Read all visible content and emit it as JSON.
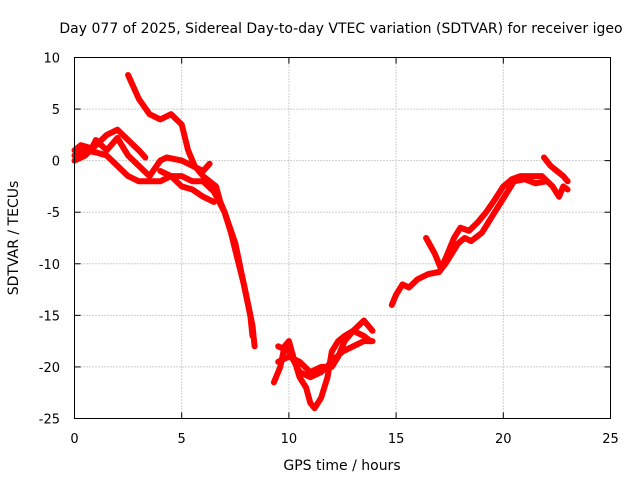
{
  "chart_data": {
    "type": "line",
    "title": "Day 077 of 2025, Sidereal Day-to-day VTEC variation (SDTVAR) for receiver igeo",
    "xlabel": "GPS time / hours",
    "ylabel": "SDTVAR / TECUs",
    "xlim": [
      0,
      25
    ],
    "ylim": [
      -25,
      10
    ],
    "xticks": [
      0,
      5,
      10,
      15,
      20,
      25
    ],
    "yticks": [
      -25,
      -20,
      -15,
      -10,
      -5,
      0,
      5,
      10
    ],
    "grid": true,
    "legend": "none",
    "series_color": "#ff0000",
    "series": [
      {
        "name": "segment-a",
        "points": [
          [
            0,
            1
          ],
          [
            0.3,
            1.5
          ],
          [
            0.8,
            1.2
          ],
          [
            1,
            2
          ],
          [
            1.5,
            1
          ],
          [
            2,
            2.2
          ],
          [
            2.5,
            0.5
          ],
          [
            3,
            -0.5
          ],
          [
            3.5,
            -1.5
          ],
          [
            4,
            0
          ],
          [
            4.3,
            0.3
          ],
          [
            5,
            0
          ],
          [
            5.5,
            -0.5
          ],
          [
            6,
            -1
          ],
          [
            6.3,
            -0.3
          ]
        ]
      },
      {
        "name": "segment-b",
        "points": [
          [
            0,
            0
          ],
          [
            0.5,
            0.5
          ],
          [
            1,
            1.5
          ],
          [
            1.5,
            2.5
          ],
          [
            2,
            3
          ],
          [
            2.5,
            2
          ],
          [
            3,
            1
          ],
          [
            3.3,
            0.3
          ]
        ]
      },
      {
        "name": "segment-c",
        "points": [
          [
            0,
            0.5
          ],
          [
            0.5,
            1
          ],
          [
            1,
            0.8
          ],
          [
            1.5,
            0.5
          ],
          [
            2,
            -0.5
          ],
          [
            2.5,
            -1.5
          ],
          [
            3,
            -2
          ],
          [
            3.5,
            -2
          ],
          [
            4,
            -2
          ],
          [
            4.5,
            -1.5
          ],
          [
            5,
            -2.5
          ],
          [
            5.5,
            -2.8
          ],
          [
            6,
            -3.5
          ],
          [
            6.5,
            -4
          ]
        ]
      },
      {
        "name": "segment-d",
        "points": [
          [
            2.5,
            8.3
          ],
          [
            3,
            6
          ],
          [
            3.5,
            4.5
          ],
          [
            4,
            4
          ],
          [
            4.5,
            4.5
          ],
          [
            5,
            3.5
          ],
          [
            5.3,
            1
          ],
          [
            5.6,
            -0.5
          ],
          [
            6,
            -1.5
          ],
          [
            6.3,
            -2
          ],
          [
            6.6,
            -2.5
          ],
          [
            6.8,
            -4
          ],
          [
            7,
            -5
          ],
          [
            7.3,
            -7
          ],
          [
            7.6,
            -9.5
          ],
          [
            7.9,
            -12
          ],
          [
            8.1,
            -14
          ],
          [
            8.3,
            -16
          ],
          [
            8.4,
            -18
          ]
        ]
      },
      {
        "name": "segment-e",
        "points": [
          [
            4,
            -1
          ],
          [
            4.5,
            -1.5
          ],
          [
            5,
            -1.5
          ],
          [
            5.5,
            -2
          ],
          [
            6,
            -2
          ],
          [
            6.5,
            -3
          ],
          [
            7,
            -5
          ],
          [
            7.5,
            -8
          ],
          [
            7.8,
            -11
          ],
          [
            8,
            -13
          ],
          [
            8.2,
            -15
          ],
          [
            8.3,
            -17
          ]
        ]
      },
      {
        "name": "segment-f",
        "points": [
          [
            9.3,
            -21.5
          ],
          [
            9.6,
            -20
          ],
          [
            9.8,
            -18
          ],
          [
            10,
            -17.5
          ],
          [
            10.2,
            -19
          ],
          [
            10.5,
            -21
          ],
          [
            10.8,
            -22
          ],
          [
            11,
            -23.5
          ],
          [
            11.2,
            -24
          ],
          [
            11.5,
            -23
          ],
          [
            11.8,
            -21
          ],
          [
            12,
            -18.5
          ],
          [
            12.3,
            -17.5
          ],
          [
            12.6,
            -17
          ],
          [
            13,
            -16.5
          ],
          [
            13.5,
            -17
          ],
          [
            13.8,
            -17.5
          ]
        ]
      },
      {
        "name": "segment-g",
        "points": [
          [
            9.5,
            -19.5
          ],
          [
            10,
            -19
          ],
          [
            10.5,
            -19.5
          ],
          [
            11,
            -20.5
          ],
          [
            11.5,
            -20
          ],
          [
            12,
            -20
          ],
          [
            12.3,
            -19
          ],
          [
            12.6,
            -17.5
          ],
          [
            13,
            -16.5
          ],
          [
            13.5,
            -15.5
          ],
          [
            13.9,
            -16.5
          ]
        ]
      },
      {
        "name": "segment-h",
        "points": [
          [
            9.5,
            -18
          ],
          [
            10,
            -18.5
          ],
          [
            10.5,
            -20.5
          ],
          [
            11,
            -21
          ],
          [
            11.5,
            -20.5
          ],
          [
            12,
            -19.5
          ],
          [
            12.5,
            -18.5
          ],
          [
            13,
            -18
          ],
          [
            13.5,
            -17.5
          ],
          [
            13.9,
            -17.5
          ]
        ]
      },
      {
        "name": "segment-i",
        "points": [
          [
            14.8,
            -14
          ],
          [
            15,
            -13
          ],
          [
            15.3,
            -12
          ],
          [
            15.6,
            -12.3
          ],
          [
            16,
            -11.5
          ],
          [
            16.5,
            -11
          ],
          [
            17,
            -10.8
          ],
          [
            17.3,
            -10
          ],
          [
            17.6,
            -9
          ],
          [
            17.9,
            -8
          ],
          [
            18.2,
            -7.5
          ],
          [
            18.5,
            -7.8
          ],
          [
            19,
            -7
          ],
          [
            19.3,
            -6
          ],
          [
            19.6,
            -5
          ],
          [
            19.9,
            -4
          ],
          [
            20.2,
            -3
          ],
          [
            20.5,
            -2
          ],
          [
            21,
            -1.8
          ],
          [
            21.5,
            -2.2
          ],
          [
            22,
            -2
          ]
        ]
      },
      {
        "name": "segment-j",
        "points": [
          [
            16.4,
            -7.5
          ],
          [
            16.8,
            -9
          ],
          [
            17.1,
            -10.5
          ],
          [
            17.4,
            -9
          ],
          [
            17.7,
            -7.5
          ],
          [
            18,
            -6.5
          ],
          [
            18.4,
            -6.8
          ],
          [
            18.8,
            -6
          ],
          [
            19.2,
            -5
          ],
          [
            19.6,
            -3.8
          ],
          [
            20,
            -2.5
          ],
          [
            20.4,
            -1.8
          ],
          [
            20.8,
            -1.5
          ],
          [
            21.3,
            -1.5
          ],
          [
            21.8,
            -1.5
          ]
        ]
      },
      {
        "name": "segment-k",
        "points": [
          [
            21.8,
            -1.5
          ],
          [
            22.3,
            -2.5
          ],
          [
            22.6,
            -3.5
          ],
          [
            22.8,
            -2.5
          ],
          [
            23,
            -2.8
          ]
        ]
      },
      {
        "name": "segment-l",
        "points": [
          [
            21.9,
            0.3
          ],
          [
            22.2,
            -0.5
          ],
          [
            22.5,
            -1
          ],
          [
            22.8,
            -1.5
          ],
          [
            23,
            -2
          ]
        ]
      }
    ]
  }
}
